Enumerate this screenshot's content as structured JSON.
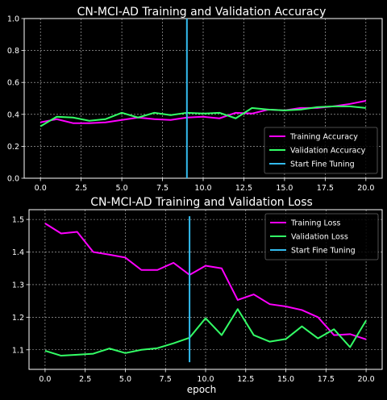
{
  "figure": {
    "xlabel_bottom": "epoch"
  },
  "chart_data": [
    {
      "type": "line",
      "title": "CN-MCI-AD  Training and Validation Accuracy",
      "xlabel": "",
      "ylabel": "",
      "xlim": [
        -1,
        21
      ],
      "ylim": [
        0,
        1.0
      ],
      "xticks": [
        0,
        2.5,
        5,
        7.5,
        10,
        12.5,
        15,
        17.5,
        20
      ],
      "xtick_labels": [
        "0.0",
        "2.5",
        "5.0",
        "7.5",
        "10.0",
        "12.5",
        "15.0",
        "17.5",
        "20.0"
      ],
      "yticks": [
        0,
        0.2,
        0.4,
        0.6,
        0.8,
        1.0
      ],
      "ytick_labels": [
        "0.0",
        "0.2",
        "0.4",
        "0.6",
        "0.8",
        "1.0"
      ],
      "grid": true,
      "legend_position": "lower-right",
      "x": [
        0,
        1,
        2,
        3,
        4,
        5,
        6,
        7,
        8,
        9,
        10,
        11,
        12,
        13,
        14,
        15,
        16,
        17,
        18,
        19,
        20
      ],
      "series": [
        {
          "name": "Training Accuracy",
          "color": "#ff00ff",
          "values": [
            0.35,
            0.37,
            0.345,
            0.345,
            0.35,
            0.365,
            0.38,
            0.37,
            0.365,
            0.38,
            0.385,
            0.375,
            0.41,
            0.405,
            0.43,
            0.425,
            0.44,
            0.44,
            0.45,
            0.465,
            0.485
          ]
        },
        {
          "name": "Validation Accuracy",
          "color": "#33ff66",
          "values": [
            0.325,
            0.385,
            0.38,
            0.36,
            0.37,
            0.41,
            0.38,
            0.41,
            0.395,
            0.41,
            0.405,
            0.41,
            0.375,
            0.44,
            0.43,
            0.425,
            0.43,
            0.445,
            0.45,
            0.45,
            0.44
          ]
        },
        {
          "name": "Start Fine Tuning",
          "color": "#33bbee",
          "kind": "vline",
          "x": [
            9,
            9
          ],
          "values": [
            0,
            1.0
          ]
        }
      ]
    },
    {
      "type": "line",
      "title": "CN-MCI-AD  Training and Validation Loss",
      "xlabel": "epoch",
      "ylabel": "",
      "xlim": [
        -1,
        21
      ],
      "ylim": [
        1.04,
        1.53
      ],
      "xticks": [
        0,
        2.5,
        5,
        7.5,
        10,
        12.5,
        15,
        17.5,
        20
      ],
      "xtick_labels": [
        "0.0",
        "2.5",
        "5.0",
        "7.5",
        "10.0",
        "12.5",
        "15.0",
        "17.5",
        "20.0"
      ],
      "yticks": [
        1.1,
        1.2,
        1.3,
        1.4,
        1.5
      ],
      "ytick_labels": [
        "1.1",
        "1.2",
        "1.3",
        "1.4",
        "1.5"
      ],
      "grid": true,
      "legend_position": "upper-right",
      "x": [
        0,
        1,
        2,
        3,
        4,
        5,
        6,
        7,
        8,
        9,
        10,
        11,
        12,
        13,
        14,
        15,
        16,
        17,
        18,
        19,
        20
      ],
      "series": [
        {
          "name": "Training Loss",
          "color": "#ff00ff",
          "values": [
            1.488,
            1.457,
            1.462,
            1.4,
            1.392,
            1.383,
            1.345,
            1.345,
            1.367,
            1.33,
            1.358,
            1.35,
            1.253,
            1.27,
            1.24,
            1.233,
            1.222,
            1.2,
            1.145,
            1.148,
            1.132
          ]
        },
        {
          "name": "Validation Loss",
          "color": "#33ff66",
          "values": [
            1.097,
            1.082,
            1.085,
            1.088,
            1.104,
            1.09,
            1.1,
            1.105,
            1.12,
            1.137,
            1.197,
            1.145,
            1.225,
            1.145,
            1.125,
            1.133,
            1.172,
            1.135,
            1.163,
            1.108,
            1.19
          ]
        },
        {
          "name": "Start Fine Tuning",
          "color": "#33bbee",
          "kind": "vline",
          "x": [
            9,
            9
          ],
          "values": [
            1.062,
            1.51
          ]
        }
      ]
    }
  ]
}
